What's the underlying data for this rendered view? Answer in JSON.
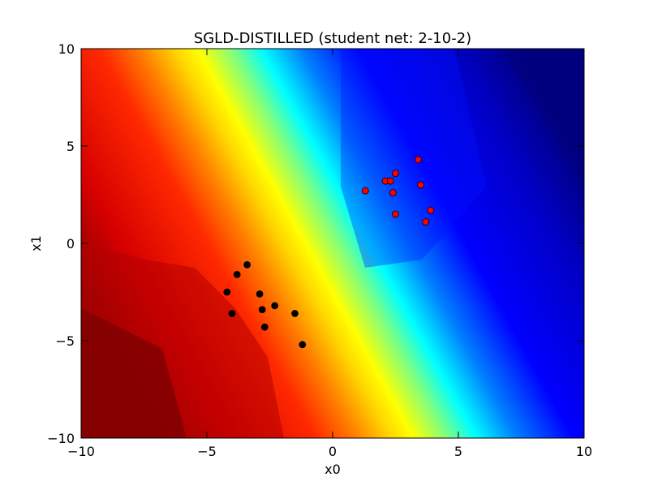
{
  "chart_data": {
    "type": "scatter",
    "title": "SGLD-DISTILLED (student net: 2-10-2)",
    "xlabel": "x0",
    "ylabel": "x1",
    "xlim": [
      -10,
      10
    ],
    "ylim": [
      -10,
      10
    ],
    "xticks": [
      -10,
      -5,
      0,
      5,
      10
    ],
    "yticks": [
      -10,
      -5,
      0,
      5,
      10
    ],
    "xtick_labels": [
      "−10",
      "−5",
      "0",
      "5",
      "10"
    ],
    "ytick_labels": [
      "−10",
      "−5",
      "0",
      "5",
      "10"
    ],
    "grid": false,
    "background": {
      "type": "contourf",
      "colormap": "jet",
      "description_colors": [
        "#800000",
        "#ff0000",
        "#ffff00",
        "#00ffff",
        "#0000ff",
        "#00007f"
      ]
    },
    "series": [
      {
        "color": "#000000",
        "points": [
          {
            "x": -3.4,
            "y": -1.1
          },
          {
            "x": -3.8,
            "y": -1.6
          },
          {
            "x": -4.2,
            "y": -2.5
          },
          {
            "x": -4.0,
            "y": -3.6
          },
          {
            "x": -2.9,
            "y": -2.6
          },
          {
            "x": -2.8,
            "y": -3.4
          },
          {
            "x": -2.3,
            "y": -3.2
          },
          {
            "x": -1.5,
            "y": -3.6
          },
          {
            "x": -2.7,
            "y": -4.3
          },
          {
            "x": -1.2,
            "y": -5.2
          }
        ]
      },
      {
        "color": "#ff0000",
        "points": [
          {
            "x": 3.4,
            "y": 4.3
          },
          {
            "x": 2.5,
            "y": 3.6
          },
          {
            "x": 2.1,
            "y": 3.2
          },
          {
            "x": 2.3,
            "y": 3.2
          },
          {
            "x": 3.5,
            "y": 3.0
          },
          {
            "x": 1.3,
            "y": 2.7
          },
          {
            "x": 2.4,
            "y": 2.6
          },
          {
            "x": 3.9,
            "y": 1.7
          },
          {
            "x": 2.5,
            "y": 1.5
          },
          {
            "x": 3.7,
            "y": 1.1
          }
        ]
      }
    ]
  }
}
